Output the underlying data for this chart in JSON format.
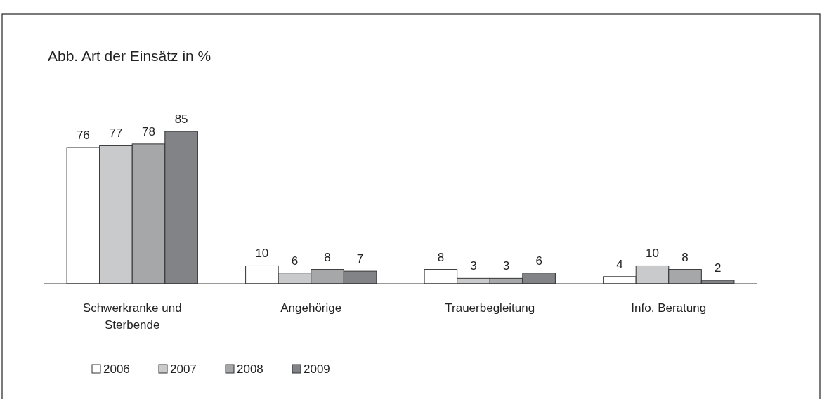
{
  "chart_data": {
    "type": "bar",
    "title": "Abb. Art der Einsätz in %",
    "categories": [
      "Schwerkranke und Sterbende",
      "Angehörige",
      "Trauerbegleitung",
      "Info, Beratung"
    ],
    "series": [
      {
        "name": "2006",
        "color": "#ffffff",
        "values": [
          76,
          10,
          8,
          4
        ]
      },
      {
        "name": "2007",
        "color": "#c9cacc",
        "values": [
          77,
          6,
          3,
          10
        ]
      },
      {
        "name": "2008",
        "color": "#a5a7a9",
        "values": [
          78,
          8,
          3,
          8
        ]
      },
      {
        "name": "2009",
        "color": "#818386",
        "values": [
          85,
          7,
          6,
          2
        ]
      }
    ],
    "data_labels": true,
    "legend": "bottom left"
  }
}
